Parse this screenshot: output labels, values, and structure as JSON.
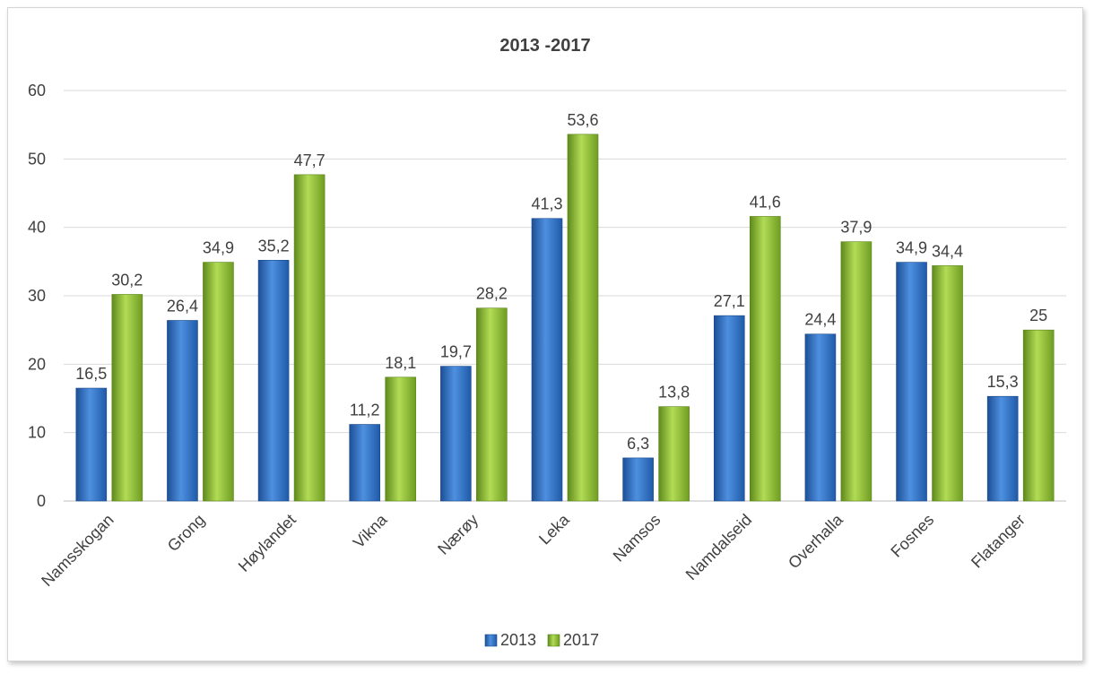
{
  "chart_data": {
    "type": "bar",
    "title": "2013 -2017",
    "xlabel": "",
    "ylabel": "",
    "ylim": [
      0,
      60
    ],
    "yticks": [
      0,
      10,
      20,
      30,
      40,
      50,
      60
    ],
    "grid": true,
    "legend_position": "bottom",
    "categories": [
      "Namsskogan",
      "Grong",
      "Høylandet",
      "Vikna",
      "Nærøy",
      "Leka",
      "Namsos",
      "Namdalseid",
      "Overhalla",
      "Fosnes",
      "Flatanger"
    ],
    "series": [
      {
        "name": "2013",
        "color": "#2e6fc0",
        "values": [
          16.5,
          26.4,
          35.2,
          11.2,
          19.7,
          41.3,
          6.3,
          27.1,
          24.4,
          34.9,
          15.3
        ],
        "labels": [
          "16,5",
          "26,4",
          "35,2",
          "11,2",
          "19,7",
          "41,3",
          "6,3",
          "27,1",
          "24,4",
          "34,9",
          "15,3"
        ]
      },
      {
        "name": "2017",
        "color": "#8ab833",
        "values": [
          30.2,
          34.9,
          47.7,
          18.1,
          28.2,
          53.6,
          13.8,
          41.6,
          37.9,
          34.4,
          25
        ],
        "labels": [
          "30,2",
          "34,9",
          "47,7",
          "18,1",
          "28,2",
          "53,6",
          "13,8",
          "41,6",
          "37,9",
          "34,4",
          "25"
        ]
      }
    ]
  }
}
